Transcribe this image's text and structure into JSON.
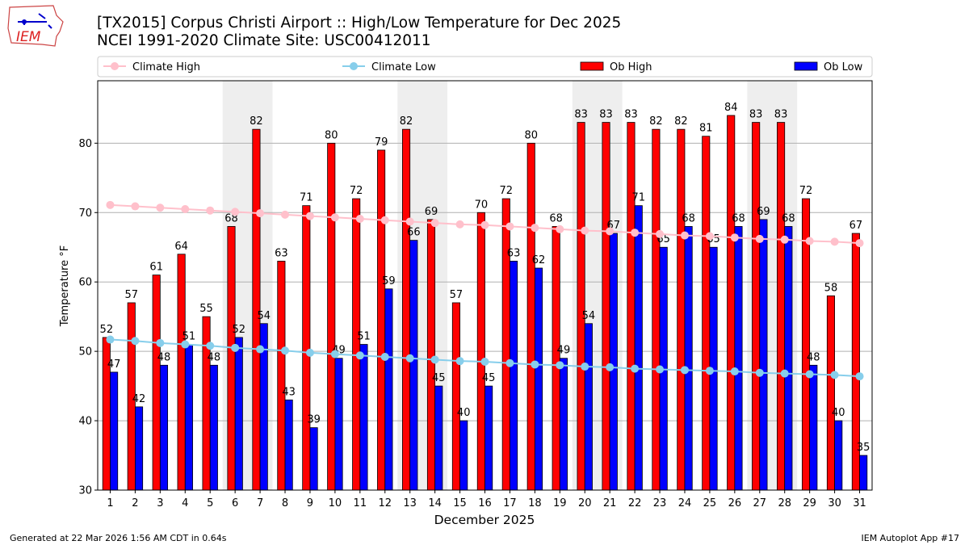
{
  "header": {
    "title_line1": "[TX2015] Corpus Christi Airport :: High/Low Temperature for Dec 2025",
    "title_line2": "NCEI 1991-2020 Climate Site: USC00412011",
    "logo_text": "IEM"
  },
  "footer": {
    "left": "Generated at 22 Mar 2026 1:56 AM CDT in 0.64s",
    "right": "IEM Autoplot App #17"
  },
  "chart_data": {
    "type": "bar",
    "xlabel": "December 2025",
    "ylabel": "Temperature °F",
    "ylim": [
      30,
      89
    ],
    "xlim": [
      0.5,
      31.5
    ],
    "yticks": [
      30,
      40,
      50,
      60,
      70,
      80
    ],
    "grid": "horizontal",
    "legend_placement": "top",
    "shaded_days": [
      [
        6,
        7
      ],
      [
        13,
        14
      ],
      [
        20,
        21
      ],
      [
        27,
        28
      ]
    ],
    "categories": [
      1,
      2,
      3,
      4,
      5,
      6,
      7,
      8,
      9,
      10,
      11,
      12,
      13,
      14,
      15,
      16,
      17,
      18,
      19,
      20,
      21,
      22,
      23,
      24,
      25,
      26,
      27,
      28,
      29,
      30,
      31
    ],
    "series": [
      {
        "name": "Climate High",
        "kind": "line",
        "color": "#ffc0cb",
        "values": [
          71.1,
          70.9,
          70.7,
          70.5,
          70.3,
          70.1,
          69.9,
          69.7,
          69.5,
          69.3,
          69.1,
          68.9,
          68.7,
          68.5,
          68.3,
          68.2,
          68.0,
          67.8,
          67.6,
          67.4,
          67.3,
          67.1,
          66.9,
          66.7,
          66.6,
          66.4,
          66.2,
          66.1,
          65.9,
          65.8,
          65.6
        ]
      },
      {
        "name": "Climate Low",
        "kind": "line",
        "color": "#87ceeb",
        "values": [
          51.7,
          51.5,
          51.2,
          51.0,
          50.8,
          50.5,
          50.3,
          50.1,
          49.8,
          49.6,
          49.4,
          49.2,
          49.0,
          48.8,
          48.6,
          48.5,
          48.3,
          48.1,
          48.0,
          47.8,
          47.7,
          47.5,
          47.4,
          47.3,
          47.2,
          47.1,
          46.9,
          46.8,
          46.7,
          46.6,
          46.4
        ]
      },
      {
        "name": "Ob High",
        "kind": "bar",
        "color": "#ff0000",
        "values": [
          52,
          57,
          61,
          64,
          55,
          68,
          82,
          63,
          71,
          80,
          72,
          79,
          82,
          69,
          57,
          70,
          72,
          80,
          68,
          83,
          83,
          83,
          82,
          82,
          81,
          84,
          83,
          83,
          72,
          58,
          67
        ]
      },
      {
        "name": "Ob Low",
        "kind": "bar",
        "color": "#0000ff",
        "values": [
          47,
          42,
          48,
          51,
          48,
          52,
          54,
          43,
          39,
          49,
          51,
          59,
          66,
          45,
          40,
          45,
          63,
          62,
          49,
          54,
          67,
          71,
          65,
          68,
          65,
          68,
          69,
          68,
          48,
          40,
          35
        ]
      }
    ]
  }
}
